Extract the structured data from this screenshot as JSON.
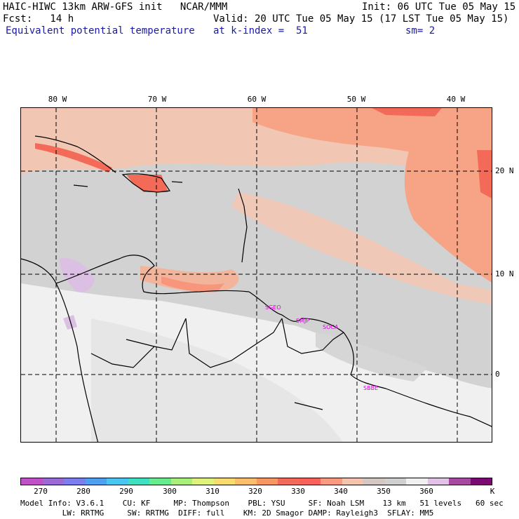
{
  "header": {
    "title": "HAIC-HIWC 13km ARW-GFS init   NCAR/MMM",
    "init": "Init: 06 UTC Tue 05 May 15",
    "fcst": "Fcst:   14 h",
    "valid": "Valid: 20 UTC Tue 05 May 15 (17 LST Tue 05 May 15)",
    "field": "Equivalent potential temperature",
    "level": "at k-index =  51",
    "smooth": "sm= 2"
  },
  "map": {
    "lon_labels": [
      "80 W",
      "70 W",
      "60 W",
      "50 W",
      "40 W"
    ],
    "lat_labels": [
      "20 N",
      "10 N",
      "0"
    ],
    "stations": [
      "SGEO",
      "SMJP",
      "SOCA",
      "SBBE"
    ]
  },
  "colorbar": {
    "colors": [
      "#c050c8",
      "#9a6ad6",
      "#7c7ef0",
      "#4fa0f0",
      "#47c7ef",
      "#3fe0c0",
      "#66ec8c",
      "#a8f07a",
      "#dff27a",
      "#f8dc6e",
      "#fbbe6a",
      "#f89860",
      "#f46a58",
      "#f8625a",
      "#fb9a80",
      "#f4c4ae",
      "#d4c8c4",
      "#d0d0d0",
      "#f0f0f0",
      "#e2c2e6",
      "#a64aa0",
      "#7a0a72"
    ],
    "labels": [
      "270",
      "280",
      "290",
      "300",
      "310",
      "320",
      "330",
      "340",
      "350",
      "360"
    ],
    "unit": "K"
  },
  "footer": {
    "line1": "Model Info: V3.6.1    CU: KF     MP: Thompson    PBL: YSU     SF: Noah LSM    13 km   51 levels   60 sec",
    "line2": "         LW: RRTMG     SW: RRTMG  DIFF: full    KM: 2D Smagor DAMP: Rayleigh3  SFLAY: MM5"
  }
}
